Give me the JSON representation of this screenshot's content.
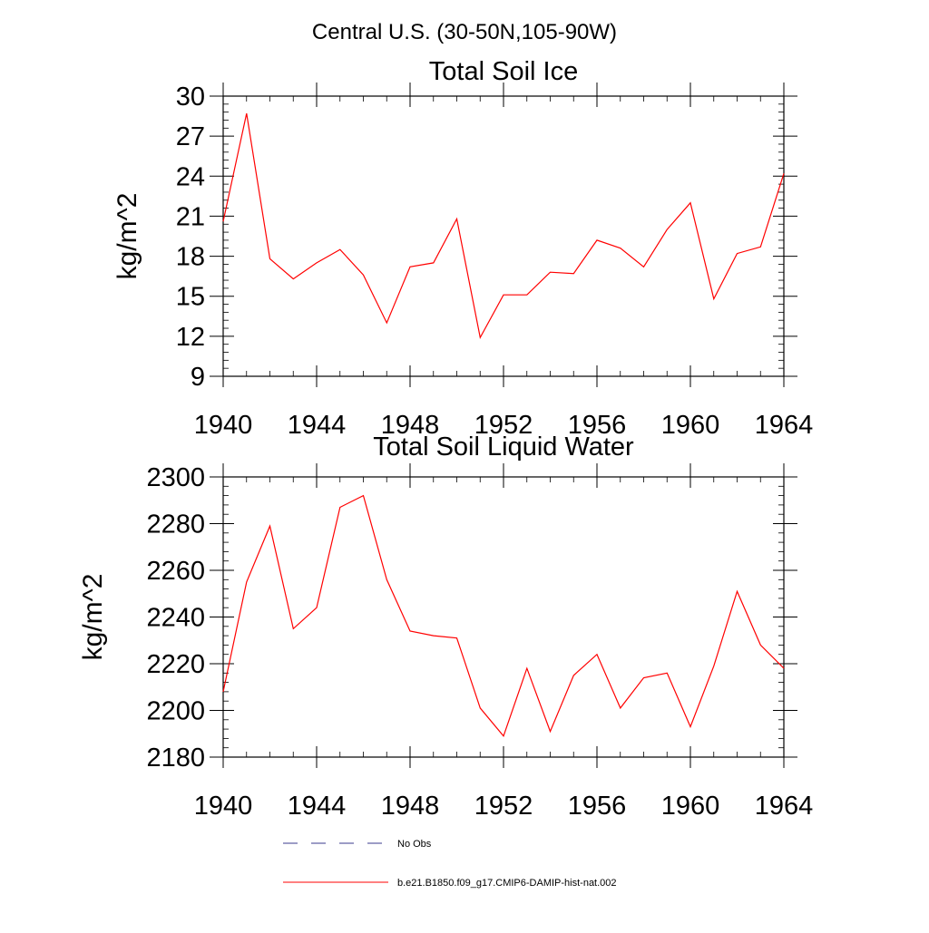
{
  "figure_title": "Central U.S. (30-50N,105-90W)",
  "legend": [
    {
      "label": "No Obs",
      "color": "#3a3a8c",
      "style": "dashed"
    },
    {
      "label": "b.e21.B1850.f09_g17.CMIP6-DAMIP-hist-nat.002",
      "color": "#ff0000",
      "style": "solid"
    }
  ],
  "chart_data": [
    {
      "type": "line",
      "title": "Total Soil Ice",
      "ylabel": "kg/m^2",
      "xlabel": "",
      "xlim": [
        1940,
        1964
      ],
      "ylim": [
        9,
        30
      ],
      "xticks": [
        1940,
        1944,
        1948,
        1952,
        1956,
        1960,
        1964
      ],
      "yticks": [
        9,
        12,
        15,
        18,
        21,
        24,
        27,
        30
      ],
      "series": [
        {
          "name": "b.e21.B1850.f09_g17.CMIP6-DAMIP-hist-nat.002",
          "color": "#ff0000",
          "x": [
            1940,
            1941,
            1942,
            1943,
            1944,
            1945,
            1946,
            1947,
            1948,
            1949,
            1950,
            1951,
            1952,
            1953,
            1954,
            1955,
            1956,
            1957,
            1958,
            1959,
            1960,
            1961,
            1962,
            1963,
            1964
          ],
          "y": [
            20.6,
            28.7,
            17.8,
            16.3,
            17.5,
            18.5,
            16.6,
            13.0,
            17.2,
            17.5,
            20.8,
            11.9,
            15.1,
            15.1,
            16.8,
            16.7,
            19.2,
            18.6,
            17.2,
            20.0,
            22.0,
            14.8,
            18.2,
            18.7,
            24.2
          ]
        }
      ]
    },
    {
      "type": "line",
      "title": "Total Soil Liquid Water",
      "ylabel": "kg/m^2",
      "xlabel": "",
      "xlim": [
        1940,
        1964
      ],
      "ylim": [
        2180,
        2300
      ],
      "xticks": [
        1940,
        1944,
        1948,
        1952,
        1956,
        1960,
        1964
      ],
      "yticks": [
        2180,
        2200,
        2220,
        2240,
        2260,
        2280,
        2300
      ],
      "series": [
        {
          "name": "b.e21.B1850.f09_g17.CMIP6-DAMIP-hist-nat.002",
          "color": "#ff0000",
          "x": [
            1940,
            1941,
            1942,
            1943,
            1944,
            1945,
            1946,
            1947,
            1948,
            1949,
            1950,
            1951,
            1952,
            1953,
            1954,
            1955,
            1956,
            1957,
            1958,
            1959,
            1960,
            1961,
            1962,
            1963,
            1964
          ],
          "y": [
            2208,
            2255,
            2279,
            2235,
            2244,
            2287,
            2292,
            2256,
            2234,
            2232,
            2231,
            2201,
            2189,
            2218,
            2191,
            2215,
            2224,
            2201,
            2214,
            2216,
            2193,
            2219,
            2251,
            2228,
            2218
          ]
        }
      ]
    }
  ]
}
